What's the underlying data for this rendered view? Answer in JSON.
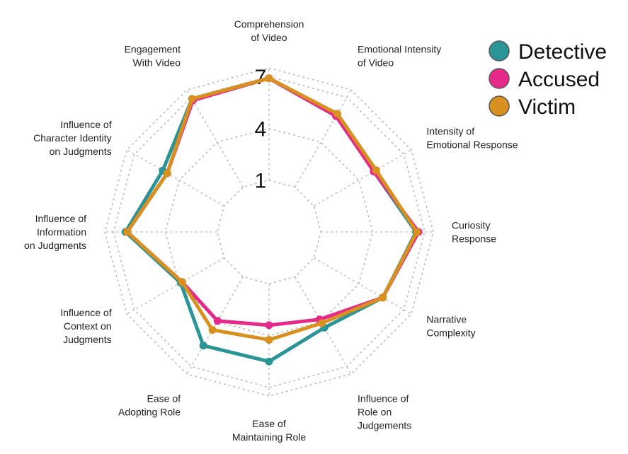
{
  "chart_data": {
    "type": "radar",
    "axes": [
      [
        "Comprehension",
        "of Video"
      ],
      [
        "Emotional Intensity",
        "of Video"
      ],
      [
        "Intensity of",
        "Emotional Response"
      ],
      [
        "Curiosity",
        "Response"
      ],
      [
        "Narrative",
        "Complexity"
      ],
      [
        "Influence of",
        "Role on",
        "Judgements"
      ],
      [
        "Ease of",
        "Maintaining Role"
      ],
      [
        "Ease of",
        "Adopting Role"
      ],
      [
        "Influence of",
        "Context on",
        "Judgments"
      ],
      [
        "Influence of",
        "Information",
        "on Judgments"
      ],
      [
        "Influence of",
        "Character Identity",
        "on Judgments"
      ],
      [
        "Engagement",
        "With Video"
      ]
    ],
    "ticks": [
      "1",
      "4",
      "7"
    ],
    "range": [
      -2,
      7.5
    ],
    "series": [
      {
        "name": "Detective",
        "color": "#2a9496",
        "values": [
          6.9,
          5.75,
          5.0,
          6.5,
          5.6,
          4.4,
          5.5,
          5.6,
          3.9,
          6.3,
          5.1,
          6.9
        ]
      },
      {
        "name": "Accused",
        "color": "#e7298a",
        "values": [
          6.9,
          5.75,
          5.0,
          6.65,
          5.6,
          3.85,
          3.4,
          3.95,
          3.8,
          6.2,
          4.8,
          6.8
        ]
      },
      {
        "name": "Victim",
        "color": "#d8901f",
        "values": [
          6.9,
          5.9,
          5.15,
          6.55,
          5.6,
          4.1,
          4.25,
          4.55,
          3.8,
          6.2,
          4.8,
          6.9
        ]
      }
    ],
    "legend_position": "top-right"
  }
}
